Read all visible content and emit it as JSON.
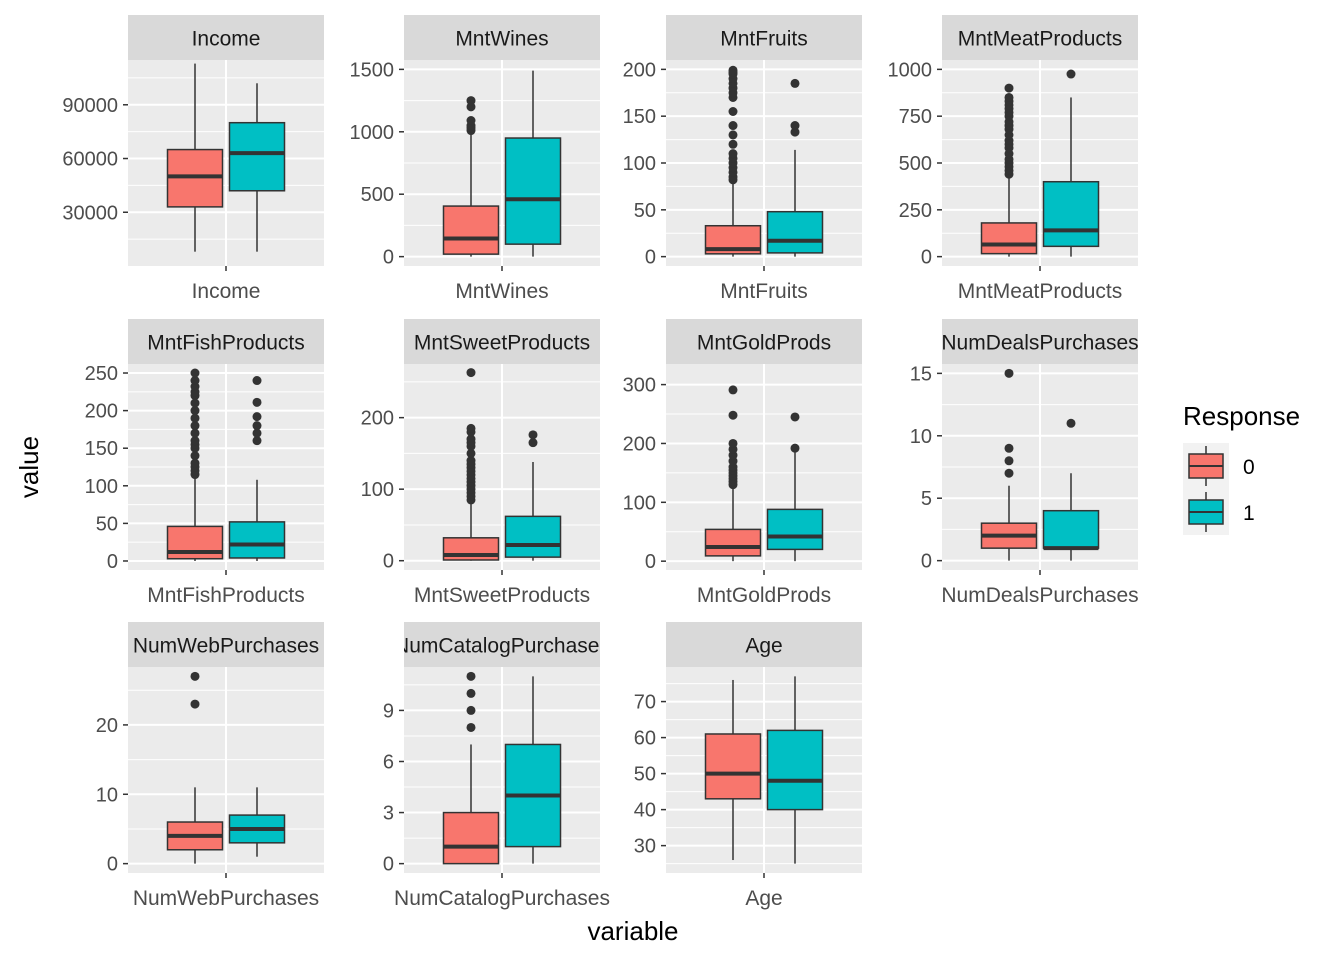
{
  "chart_data": {
    "type": "boxplot",
    "xlabel": "variable",
    "ylabel": "value",
    "legend": {
      "title": "Response",
      "position": "right",
      "entries": [
        {
          "label": "0",
          "color": "#F8766D"
        },
        {
          "label": "1",
          "color": "#00BFC4"
        }
      ]
    },
    "grid": true,
    "facets": [
      {
        "name": "Income",
        "ylim": [
          0,
          115000
        ],
        "yticks": [
          30000,
          60000,
          90000
        ],
        "boxes": [
          {
            "group": "0",
            "min": 8000,
            "q1": 33000,
            "median": 50000,
            "q3": 65000,
            "max": 113000,
            "outliers": []
          },
          {
            "group": "1",
            "min": 8000,
            "q1": 42000,
            "median": 63000,
            "q3": 80000,
            "max": 102000,
            "outliers": []
          }
        ]
      },
      {
        "name": "MntWines",
        "ylim": [
          -75,
          1575
        ],
        "yticks": [
          0,
          500,
          1000,
          1500
        ],
        "boxes": [
          {
            "group": "0",
            "min": 0,
            "q1": 20,
            "median": 145,
            "q3": 405,
            "max": 990,
            "outliers": [
              1010,
              1030,
              1050,
              1090,
              1200,
              1250
            ]
          },
          {
            "group": "1",
            "min": 0,
            "q1": 100,
            "median": 460,
            "q3": 950,
            "max": 1490,
            "outliers": []
          }
        ]
      },
      {
        "name": "MntFruits",
        "ylim": [
          -10,
          210
        ],
        "yticks": [
          0,
          50,
          100,
          150,
          200
        ],
        "boxes": [
          {
            "group": "0",
            "min": 0,
            "q1": 3,
            "median": 8,
            "q3": 33,
            "max": 80,
            "outliers": [
              82,
              85,
              90,
              95,
              100,
              105,
              110,
              120,
              130,
              140,
              155,
              170,
              175,
              180,
              185,
              190,
              195,
              197,
              199
            ]
          },
          {
            "group": "1",
            "min": 0,
            "q1": 4,
            "median": 17,
            "q3": 48,
            "max": 114,
            "outliers": [
              133,
              140,
              185
            ]
          }
        ]
      },
      {
        "name": "MntMeatProducts",
        "ylim": [
          -50,
          1050
        ],
        "yticks": [
          0,
          250,
          500,
          750,
          1000
        ],
        "boxes": [
          {
            "group": "0",
            "min": 0,
            "q1": 16,
            "median": 65,
            "q3": 180,
            "max": 420,
            "outliers": [
              440,
              460,
              480,
              500,
              520,
              550,
              580,
              600,
              620,
              650,
              680,
              700,
              720,
              750,
              770,
              790,
              810,
              830,
              850,
              900
            ]
          },
          {
            "group": "1",
            "min": 0,
            "q1": 55,
            "median": 140,
            "q3": 400,
            "max": 850,
            "outliers": [
              975
            ]
          }
        ]
      },
      {
        "name": "MntFishProducts",
        "ylim": [
          -12,
          262
        ],
        "yticks": [
          0,
          50,
          100,
          150,
          200,
          250
        ],
        "boxes": [
          {
            "group": "0",
            "min": 0,
            "q1": 3,
            "median": 12,
            "q3": 46,
            "max": 110,
            "outliers": [
              115,
              120,
              125,
              130,
              140,
              150,
              155,
              160,
              170,
              180,
              190,
              200,
              210,
              220,
              225,
              232,
              240,
              250
            ]
          },
          {
            "group": "1",
            "min": 0,
            "q1": 4,
            "median": 22,
            "q3": 52,
            "max": 108,
            "outliers": [
              160,
              170,
              180,
              192,
              211,
              240
            ]
          }
        ]
      },
      {
        "name": "MntSweetProducts",
        "ylim": [
          -13,
          275
        ],
        "yticks": [
          0,
          100,
          200
        ],
        "boxes": [
          {
            "group": "0",
            "min": 0,
            "q1": 1,
            "median": 8,
            "q3": 32,
            "max": 80,
            "outliers": [
              85,
              90,
              95,
              100,
              105,
              110,
              115,
              120,
              125,
              130,
              135,
              140,
              150,
              160,
              165,
              170,
              180,
              185,
              263
            ]
          },
          {
            "group": "1",
            "min": 0,
            "q1": 5,
            "median": 22,
            "q3": 62,
            "max": 138,
            "outliers": [
              165,
              176
            ]
          }
        ]
      },
      {
        "name": "MntGoldProds",
        "ylim": [
          -15,
          335
        ],
        "yticks": [
          0,
          100,
          200,
          300
        ],
        "boxes": [
          {
            "group": "0",
            "min": 0,
            "q1": 9,
            "median": 24,
            "q3": 54,
            "max": 125,
            "outliers": [
              130,
              135,
              140,
              145,
              150,
              155,
              160,
              170,
              180,
              190,
              200,
              248,
              291
            ]
          },
          {
            "group": "1",
            "min": 0,
            "q1": 20,
            "median": 42,
            "q3": 88,
            "max": 185,
            "outliers": [
              192,
              245
            ]
          }
        ]
      },
      {
        "name": "NumDealsPurchases",
        "ylim": [
          -0.75,
          15.75
        ],
        "yticks": [
          0,
          5,
          10,
          15
        ],
        "boxes": [
          {
            "group": "0",
            "min": 0,
            "q1": 1,
            "median": 2,
            "q3": 3,
            "max": 6,
            "outliers": [
              7,
              8,
              9,
              15
            ]
          },
          {
            "group": "1",
            "min": 0,
            "q1": 1,
            "median": 1,
            "q3": 4,
            "max": 7,
            "outliers": [
              11
            ]
          }
        ]
      },
      {
        "name": "NumWebPurchases",
        "ylim": [
          -1.35,
          28.35
        ],
        "yticks": [
          0,
          10,
          20
        ],
        "boxes": [
          {
            "group": "0",
            "min": 0,
            "q1": 2,
            "median": 4,
            "q3": 6,
            "max": 11,
            "outliers": [
              23,
              27
            ]
          },
          {
            "group": "1",
            "min": 1,
            "q1": 3,
            "median": 5,
            "q3": 7,
            "max": 11,
            "outliers": []
          }
        ]
      },
      {
        "name": "NumCatalogPurchases",
        "ylim": [
          -0.55,
          11.55
        ],
        "yticks": [
          0,
          3,
          6,
          9
        ],
        "boxes": [
          {
            "group": "0",
            "min": 0,
            "q1": 0,
            "median": 1,
            "q3": 3,
            "max": 7,
            "outliers": [
              8,
              9,
              10,
              11
            ]
          },
          {
            "group": "1",
            "min": 0,
            "q1": 1,
            "median": 4,
            "q3": 7,
            "max": 11,
            "outliers": []
          }
        ]
      },
      {
        "name": "Age",
        "ylim": [
          22.4,
          79.6
        ],
        "yticks": [
          30,
          40,
          50,
          60,
          70
        ],
        "boxes": [
          {
            "group": "0",
            "min": 26,
            "q1": 43,
            "median": 50,
            "q3": 61,
            "max": 76,
            "outliers": []
          },
          {
            "group": "1",
            "min": 25,
            "q1": 40,
            "median": 48,
            "q3": 62,
            "max": 77,
            "outliers": []
          }
        ]
      }
    ]
  }
}
